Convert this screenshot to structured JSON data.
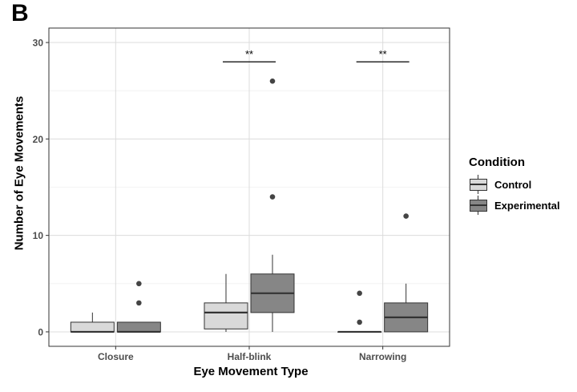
{
  "panel_label": "B",
  "chart_data": {
    "type": "box",
    "xlabel": "Eye Movement Type",
    "ylabel": "Number of Eye Movements",
    "categories": [
      "Closure",
      "Half-blink",
      "Narrowing"
    ],
    "ylim": [
      -1.5,
      31.5
    ],
    "yticks": [
      0,
      10,
      20,
      30
    ],
    "grid": true,
    "legend": {
      "title": "Condition",
      "placement": "right",
      "entries": [
        "Control",
        "Experimental"
      ]
    },
    "series": [
      {
        "name": "Control",
        "color": "#d9d9d9",
        "boxes": [
          {
            "category": "Closure",
            "min": 0,
            "q1": 0,
            "median": 0,
            "q3": 1,
            "max": 2,
            "outliers": []
          },
          {
            "category": "Half-blink",
            "min": 0,
            "q1": 0.3,
            "median": 2,
            "q3": 3,
            "max": 6,
            "outliers": []
          },
          {
            "category": "Narrowing",
            "min": 0,
            "q1": 0,
            "median": 0,
            "q3": 0,
            "max": 0,
            "outliers": [
              1,
              4
            ]
          }
        ]
      },
      {
        "name": "Experimental",
        "color": "#868686",
        "boxes": [
          {
            "category": "Closure",
            "min": 0,
            "q1": 0,
            "median": 0,
            "q3": 1,
            "max": 1,
            "outliers": [
              3,
              5
            ]
          },
          {
            "category": "Half-blink",
            "min": 0,
            "q1": 2,
            "median": 4,
            "q3": 6,
            "max": 8,
            "outliers": [
              14,
              26
            ]
          },
          {
            "category": "Narrowing",
            "min": 0,
            "q1": 0,
            "median": 1.5,
            "q3": 3,
            "max": 5,
            "outliers": [
              12
            ]
          }
        ]
      }
    ],
    "annotations": [
      {
        "category": "Half-blink",
        "text": "**",
        "y": 28
      },
      {
        "category": "Narrowing",
        "text": "**",
        "y": 28
      }
    ]
  }
}
